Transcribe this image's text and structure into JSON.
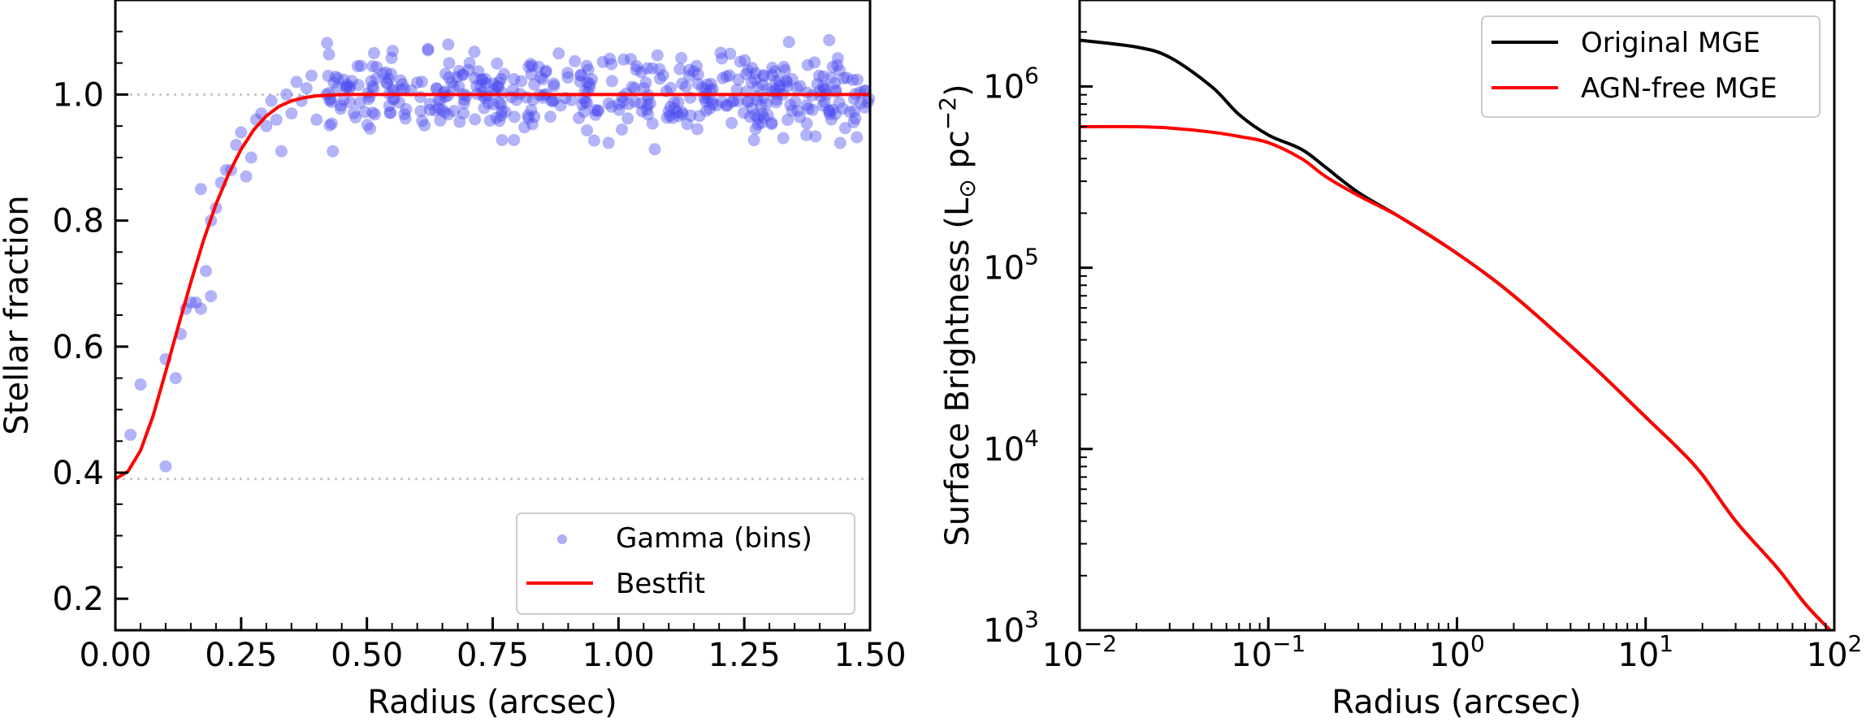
{
  "chart_data": [
    {
      "type": "scatter",
      "xlabel": "Radius (arcsec)",
      "ylabel": "Stellar fraction",
      "xlim": [
        0.0,
        1.5
      ],
      "ylim": [
        0.15,
        1.15
      ],
      "x_ticks": [
        0.0,
        0.25,
        0.5,
        0.75,
        1.0,
        1.25,
        1.5
      ],
      "x_tick_labels": [
        "0.00",
        "0.25",
        "0.50",
        "0.75",
        "1.00",
        "1.25",
        "1.50"
      ],
      "y_ticks": [
        0.2,
        0.4,
        0.6,
        0.8,
        1.0
      ],
      "y_tick_labels": [
        "0.2",
        "0.4",
        "0.6",
        "0.8",
        "1.0"
      ],
      "reference_lines": [
        1.0,
        0.39
      ],
      "legend_position": "lower-right",
      "series": [
        {
          "name": "Gamma (bins)",
          "kind": "scatter",
          "color": "#4a4af0",
          "rising_points": [
            [
              0.03,
              0.46
            ],
            [
              0.05,
              0.54
            ],
            [
              0.1,
              0.41
            ],
            [
              0.1,
              0.58
            ],
            [
              0.12,
              0.55
            ],
            [
              0.13,
              0.62
            ],
            [
              0.14,
              0.66
            ],
            [
              0.15,
              0.67
            ],
            [
              0.16,
              0.67
            ],
            [
              0.17,
              0.66
            ],
            [
              0.18,
              0.72
            ],
            [
              0.19,
              0.68
            ],
            [
              0.17,
              0.85
            ],
            [
              0.19,
              0.8
            ],
            [
              0.2,
              0.82
            ],
            [
              0.21,
              0.86
            ],
            [
              0.22,
              0.88
            ],
            [
              0.23,
              0.88
            ],
            [
              0.24,
              0.92
            ],
            [
              0.25,
              0.94
            ],
            [
              0.26,
              0.87
            ],
            [
              0.27,
              0.9
            ],
            [
              0.28,
              0.96
            ],
            [
              0.29,
              0.97
            ],
            [
              0.3,
              0.95
            ],
            [
              0.31,
              0.99
            ],
            [
              0.32,
              0.96
            ],
            [
              0.33,
              0.91
            ],
            [
              0.34,
              1.0
            ],
            [
              0.35,
              0.97
            ],
            [
              0.36,
              1.02
            ],
            [
              0.37,
              0.99
            ],
            [
              0.38,
              1.01
            ],
            [
              0.39,
              1.03
            ],
            [
              0.4,
              0.96
            ],
            [
              0.42,
              1.0
            ]
          ],
          "plateau": {
            "x_range": [
              0.42,
              1.5
            ],
            "count": 440,
            "mean": 1.0,
            "spread": 0.03,
            "min": 0.91,
            "max": 1.1
          }
        },
        {
          "name": "Bestfit",
          "kind": "line",
          "color": "#ff0000",
          "x": [
            0.0,
            0.025,
            0.05,
            0.075,
            0.1,
            0.125,
            0.15,
            0.175,
            0.2,
            0.225,
            0.25,
            0.275,
            0.3,
            0.325,
            0.35,
            0.375,
            0.4,
            0.425,
            0.45,
            0.5,
            0.75,
            1.0,
            1.25,
            1.5
          ],
          "y": [
            0.39,
            0.402,
            0.435,
            0.49,
            0.56,
            0.632,
            0.702,
            0.768,
            0.826,
            0.874,
            0.913,
            0.944,
            0.966,
            0.981,
            0.99,
            0.995,
            0.998,
            0.999,
            1.0,
            1.0,
            1.0,
            1.0,
            1.0,
            1.0
          ]
        }
      ]
    },
    {
      "type": "line",
      "xlabel": "Radius (arcsec)",
      "ylabel_prefix": "Surface Brightness (L",
      "ylabel_sub": "⊙",
      "ylabel_mid": " pc",
      "ylabel_sup": "−2",
      "ylabel_suffix": ")",
      "xscale": "log",
      "yscale": "log",
      "xlim": [
        0.01,
        100
      ],
      "ylim": [
        1000,
        3000000
      ],
      "x_ticks": [
        0.01,
        0.1,
        1,
        10,
        100
      ],
      "x_tick_base": [
        "10",
        "10",
        "10",
        "10",
        "10"
      ],
      "x_tick_exp": [
        "−2",
        "−1",
        "0",
        "1",
        "2"
      ],
      "y_ticks": [
        1000,
        10000,
        100000,
        1000000
      ],
      "y_tick_base": [
        "10",
        "10",
        "10",
        "10"
      ],
      "y_tick_exp": [
        "3",
        "4",
        "5",
        "6"
      ],
      "legend_position": "upper-right",
      "series": [
        {
          "name": "Original MGE",
          "color": "#000000",
          "x": [
            0.01,
            0.02,
            0.03,
            0.05,
            0.07,
            0.1,
            0.15,
            0.2,
            0.3,
            0.5,
            1,
            2,
            5,
            10,
            15,
            20,
            30,
            50,
            70,
            95
          ],
          "y": [
            1800000,
            1650000,
            1450000,
            1000000,
            700000,
            540000,
            450000,
            360000,
            260000,
            190000,
            120000,
            70000,
            30000,
            15000,
            10000,
            7200,
            4000,
            2200,
            1400,
            1000
          ]
        },
        {
          "name": "AGN-free MGE",
          "color": "#ff0000",
          "x": [
            0.01,
            0.02,
            0.03,
            0.05,
            0.07,
            0.1,
            0.15,
            0.2,
            0.3,
            0.5,
            1,
            2,
            5,
            10,
            15,
            20,
            30,
            50,
            70,
            95
          ],
          "y": [
            600000,
            600000,
            590000,
            560000,
            530000,
            490000,
            400000,
            320000,
            250000,
            190000,
            120000,
            70000,
            30000,
            15000,
            10000,
            7200,
            4000,
            2200,
            1400,
            1000
          ]
        }
      ]
    }
  ]
}
